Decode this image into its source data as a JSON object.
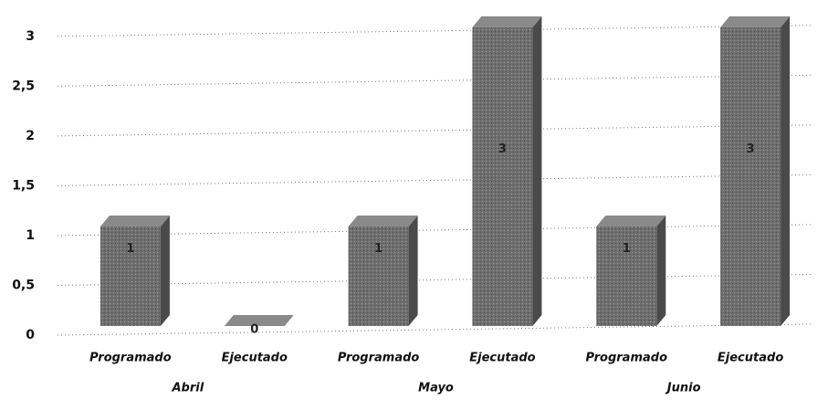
{
  "chart_data": {
    "type": "bar3d",
    "categories": [
      "Programado",
      "Ejecutado",
      "Programado",
      "Ejecutado",
      "Programado",
      "Ejecutado"
    ],
    "groups": [
      "Abril",
      "Mayo",
      "Junio"
    ],
    "values": [
      1,
      0,
      1,
      3,
      1,
      3
    ],
    "color": "#6e6e6e",
    "ylim": [
      0,
      3.2
    ],
    "yticks": [
      0,
      {
        "value": 0.5,
        "label": "0,5"
      },
      1,
      {
        "value": 1.5,
        "label": "1,5"
      },
      2,
      {
        "value": 2.5,
        "label": "2,5"
      },
      3
    ],
    "grid": true
  }
}
